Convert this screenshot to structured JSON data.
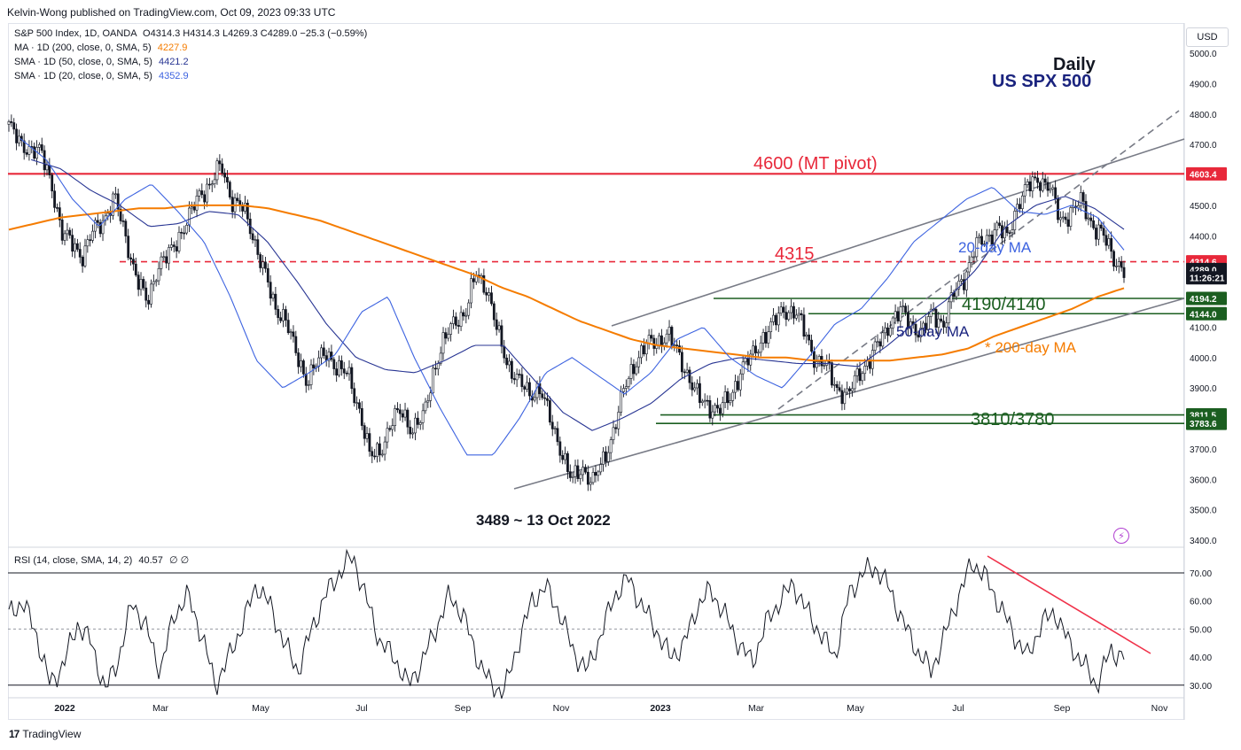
{
  "header": "Kelvin-Wong published on TradingView.com, Oct 09, 2023 09:33 UTC",
  "legend": {
    "symbol": "S&P 500 Index, 1D, OANDA",
    "ohlc": "O4314.3  H4314.3  L4269.3  C4289.0  −25.3 (−0.59%)",
    "ma200_label": "MA · 1D (200, close, 0, SMA, 5)",
    "ma200_value": "4227.9",
    "sma50_label": "SMA · 1D (50, close, 0, SMA, 5)",
    "sma50_value": "4421.2",
    "sma20_label": "SMA · 1D (20, close, 0, SMA, 5)",
    "sma20_value": "4352.9",
    "rsi_label": "RSI (14, close, SMA, 14, 2)",
    "rsi_value": "40.57",
    "rsi_extra": "∅ ∅"
  },
  "currency": "USD",
  "footer_brand": "TradingView",
  "colors": {
    "pivot": "#e8283a",
    "support": "#1b5e20",
    "ma200": "#f57c00",
    "sma50": "#283593",
    "sma20": "#3d63e0",
    "channel": "#787b86",
    "candle": "#131722",
    "rsi_trend": "#f0324a"
  },
  "chart_data": {
    "type": "candlestick",
    "title": "US SPX 500",
    "timeframe": "Daily",
    "y_axis": {
      "ticks": [
        "5000.0",
        "4900.0",
        "4800.0",
        "4700.0",
        "4600.0",
        "4500.0",
        "4400.0",
        "4300.0",
        "4200.0",
        "4100.0",
        "4000.0",
        "3900.0",
        "3800.0",
        "3700.0",
        "3600.0",
        "3500.0",
        "3400.0"
      ],
      "range": [
        3400,
        5000
      ]
    },
    "x_axis": {
      "ticks": [
        "2022",
        "Mar",
        "May",
        "Jul",
        "Sep",
        "Nov",
        "2023",
        "Mar",
        "May",
        "Jul",
        "Sep",
        "Nov"
      ]
    },
    "price_tags": [
      {
        "label": "4603.4",
        "value": 4603.4,
        "color": "#e8283a"
      },
      {
        "label": "4314.6",
        "value": 4314.6,
        "color": "#e8283a"
      },
      {
        "label": "4289.0",
        "value": 4289.0,
        "color": "#131722"
      },
      {
        "label": "11:26:21",
        "value": 4262,
        "color": "#131722"
      },
      {
        "label": "4194.2",
        "value": 4194.2,
        "color": "#1b5e20"
      },
      {
        "label": "4144.0",
        "value": 4144.0,
        "color": "#1b5e20"
      },
      {
        "label": "3811.5",
        "value": 3811.5,
        "color": "#1b5e20"
      },
      {
        "label": "3783.6",
        "value": 3783.6,
        "color": "#1b5e20"
      }
    ],
    "annotations": {
      "pivot": "4600 (MT pivot)",
      "resistance": "4315",
      "support_upper": "4190/4140",
      "support_lower": "3810/3780",
      "ma20": "20-day MA",
      "ma50": "50-day MA",
      "ma200": "* 200-day MA",
      "low": "3489 ~ 13 Oct 2022"
    },
    "levels": {
      "pivot": 4603.4,
      "resistance": 4314.6,
      "support_a_top": 4194.2,
      "support_a_bottom": 4144.0,
      "support_b_top": 3811.5,
      "support_b_bottom": 3783.6
    },
    "series": [
      {
        "name": "close",
        "values": [
          4766,
          4700,
          4690,
          4670,
          4580,
          4400,
          4380,
          4330,
          4420,
          4460,
          4520,
          4400,
          4260,
          4180,
          4300,
          4330,
          4400,
          4460,
          4540,
          4570,
          4630,
          4520,
          4490,
          4400,
          4290,
          4160,
          4140,
          4010,
          3930,
          3980,
          4020,
          3960,
          3940,
          3830,
          3670,
          3700,
          3780,
          3830,
          3760,
          3800,
          3960,
          4050,
          4130,
          4140,
          4280,
          4230,
          4080,
          3980,
          3920,
          3880,
          3900,
          3790,
          3700,
          3590,
          3640,
          3590,
          3660,
          3770,
          3900,
          3990,
          4040,
          4050,
          4080,
          4010,
          3940,
          3860,
          3840,
          3830,
          3870,
          3970,
          4000,
          4070,
          4110,
          4160,
          4150,
          4080,
          3990,
          3970,
          3900,
          3870,
          3950,
          3990,
          4050,
          4120,
          4150,
          4110,
          4080,
          4150,
          4110,
          4210,
          4270,
          4360,
          4390,
          4430,
          4390,
          4510,
          4560,
          4590,
          4560,
          4450,
          4480,
          4510,
          4440,
          4400,
          4330,
          4289
        ]
      },
      {
        "name": "200-day MA",
        "values": [
          4420,
          4440,
          4460,
          4470,
          4480,
          4490,
          4490,
          4500,
          4500,
          4500,
          4490,
          4470,
          4450,
          4420,
          4390,
          4360,
          4330,
          4300,
          4270,
          4230,
          4200,
          4160,
          4120,
          4090,
          4060,
          4040,
          4030,
          4020,
          4010,
          4000,
          4000,
          3990,
          3990,
          3990,
          3990,
          4000,
          4010,
          4030,
          4070,
          4100,
          4130,
          4160,
          4200,
          4228
        ]
      },
      {
        "name": "50-day MA",
        "values": [
          4650,
          4620,
          4550,
          4500,
          4430,
          4440,
          4480,
          4470,
          4380,
          4250,
          4110,
          4000,
          3960,
          3950,
          3990,
          4040,
          4040,
          3930,
          3820,
          3760,
          3800,
          3850,
          3930,
          3980,
          4000,
          3990,
          3980,
          3980,
          3970,
          4040,
          4120,
          4190,
          4290,
          4430,
          4500,
          4530,
          4490,
          4421
        ]
      },
      {
        "name": "20-day MA",
        "values": [
          4720,
          4650,
          4520,
          4430,
          4520,
          4570,
          4480,
          4380,
          4200,
          3990,
          3900,
          3950,
          4010,
          4150,
          4200,
          4000,
          3830,
          3680,
          3680,
          3800,
          3950,
          4000,
          3940,
          3880,
          3950,
          4060,
          4100,
          4000,
          3940,
          3900,
          4000,
          4110,
          4160,
          4260,
          4380,
          4450,
          4520,
          4560,
          4480,
          4470,
          4500,
          4460,
          4353
        ]
      },
      {
        "name": "RSI",
        "values": [
          55,
          60,
          48,
          30,
          38,
          52,
          45,
          28,
          40,
          60,
          50,
          35,
          55,
          62,
          48,
          30,
          40,
          52,
          66,
          58,
          45,
          35,
          50,
          62,
          70,
          76,
          60,
          45,
          40,
          30,
          38,
          50,
          62,
          55,
          40,
          30,
          28,
          45,
          60,
          65,
          56,
          42,
          35,
          48,
          62,
          68,
          58,
          50,
          40,
          44,
          58,
          64,
          55,
          45,
          38,
          52,
          60,
          66,
          56,
          48,
          40,
          62,
          70,
          72,
          64,
          52,
          42,
          35,
          48,
          62,
          74,
          68,
          58,
          48,
          40,
          52,
          56,
          45,
          38,
          30,
          42,
          40.57
        ]
      }
    ],
    "rsi_axis": {
      "ticks": [
        "70.00",
        "60.00",
        "50.00",
        "40.00",
        "30.00"
      ],
      "range": [
        25,
        80
      ]
    }
  }
}
